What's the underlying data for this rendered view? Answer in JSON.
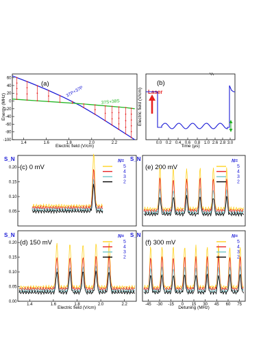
{
  "chart_data": [
    {
      "panel": "a",
      "type": "line",
      "label": "(a)",
      "xlabel": "Electric field (V/cm)",
      "ylabel": "Energy (MHz)",
      "xlim": [
        1.3,
        2.4
      ],
      "ylim": [
        -100,
        70
      ],
      "xticks": [
        "1.4",
        "1.6",
        "1.8",
        "2.0",
        "2.2"
      ],
      "yticks": [
        "60",
        "40",
        "20",
        "0",
        "-20",
        "-40",
        "-60",
        "-80",
        "-100"
      ],
      "series": [
        {
          "name": "37P+37P",
          "color": "#1a1ad6",
          "x": [
            1.3,
            1.45,
            1.6,
            1.75,
            1.9,
            2.05,
            2.2,
            2.38
          ],
          "y": [
            65,
            48,
            30,
            10,
            -12,
            -38,
            -66,
            -100
          ]
        },
        {
          "name": "37S+38S",
          "color": "#22b522",
          "x": [
            1.3,
            1.5,
            1.7,
            1.9,
            2.1,
            2.3,
            2.38
          ],
          "y": [
            5,
            1,
            -3,
            -7,
            -12,
            -17,
            -20
          ]
        }
      ],
      "markers_x": [
        1.34,
        1.43,
        1.52,
        1.62,
        1.72,
        1.83,
        1.93,
        2.03,
        2.12,
        2.18,
        2.24,
        2.3,
        2.35
      ]
    },
    {
      "panel": "b",
      "type": "line",
      "label": "(b)",
      "annotation": "Laser",
      "xlabel": "Time (μs)",
      "ylabel": "Electric field (V/cm)",
      "xticks": [
        "0.0",
        "0.2",
        "0.4",
        "0.6",
        "0.8",
        "1.0",
        "2.6",
        "2.8",
        "3.0"
      ]
    },
    {
      "panel": "c",
      "type": "line",
      "label": "(c) 0 mV",
      "ylabel": "S_N",
      "legend_title": "N=",
      "legend": [
        "5",
        "4",
        "3",
        "2"
      ],
      "xlim": [
        1.3,
        2.4
      ],
      "yticks": [
        "0.05",
        "0.10",
        "0.15",
        "0.20"
      ]
    },
    {
      "panel": "d",
      "type": "line",
      "label": "(d) 150 mV",
      "ylabel": "S_N",
      "xlabel": "Electric field (V/cm)",
      "legend_title": "N=",
      "legend": [
        "5",
        "4",
        "3",
        "2"
      ],
      "xlim": [
        1.3,
        2.4
      ],
      "xticks": [
        "1.4",
        "1.6",
        "1.8",
        "2.0",
        "2.2"
      ],
      "yticks": [
        "0.00",
        "0.05",
        "0.10",
        "0.15",
        "0.20"
      ]
    },
    {
      "panel": "e",
      "type": "line",
      "label": "(e) 200 mV",
      "ylabel": "S_N",
      "legend_title": "N=",
      "legend": [
        "5",
        "4",
        "3",
        "2"
      ]
    },
    {
      "panel": "f",
      "type": "line",
      "label": "(f) 300 mV",
      "ylabel": "S_N",
      "xlabel": "Detuning (MHz)",
      "legend_title": "N=",
      "legend": [
        "5",
        "4",
        "3",
        "2"
      ],
      "xticks": [
        "-45",
        "-30",
        "-15",
        "0",
        "15",
        "30",
        "45",
        "60",
        "75"
      ]
    }
  ],
  "colors": {
    "N5": "#ffd21f",
    "N4": "#e62020",
    "N3": "#6fc6c9",
    "N2": "#000000",
    "blue": "#1a1ad6",
    "green": "#22b522"
  }
}
